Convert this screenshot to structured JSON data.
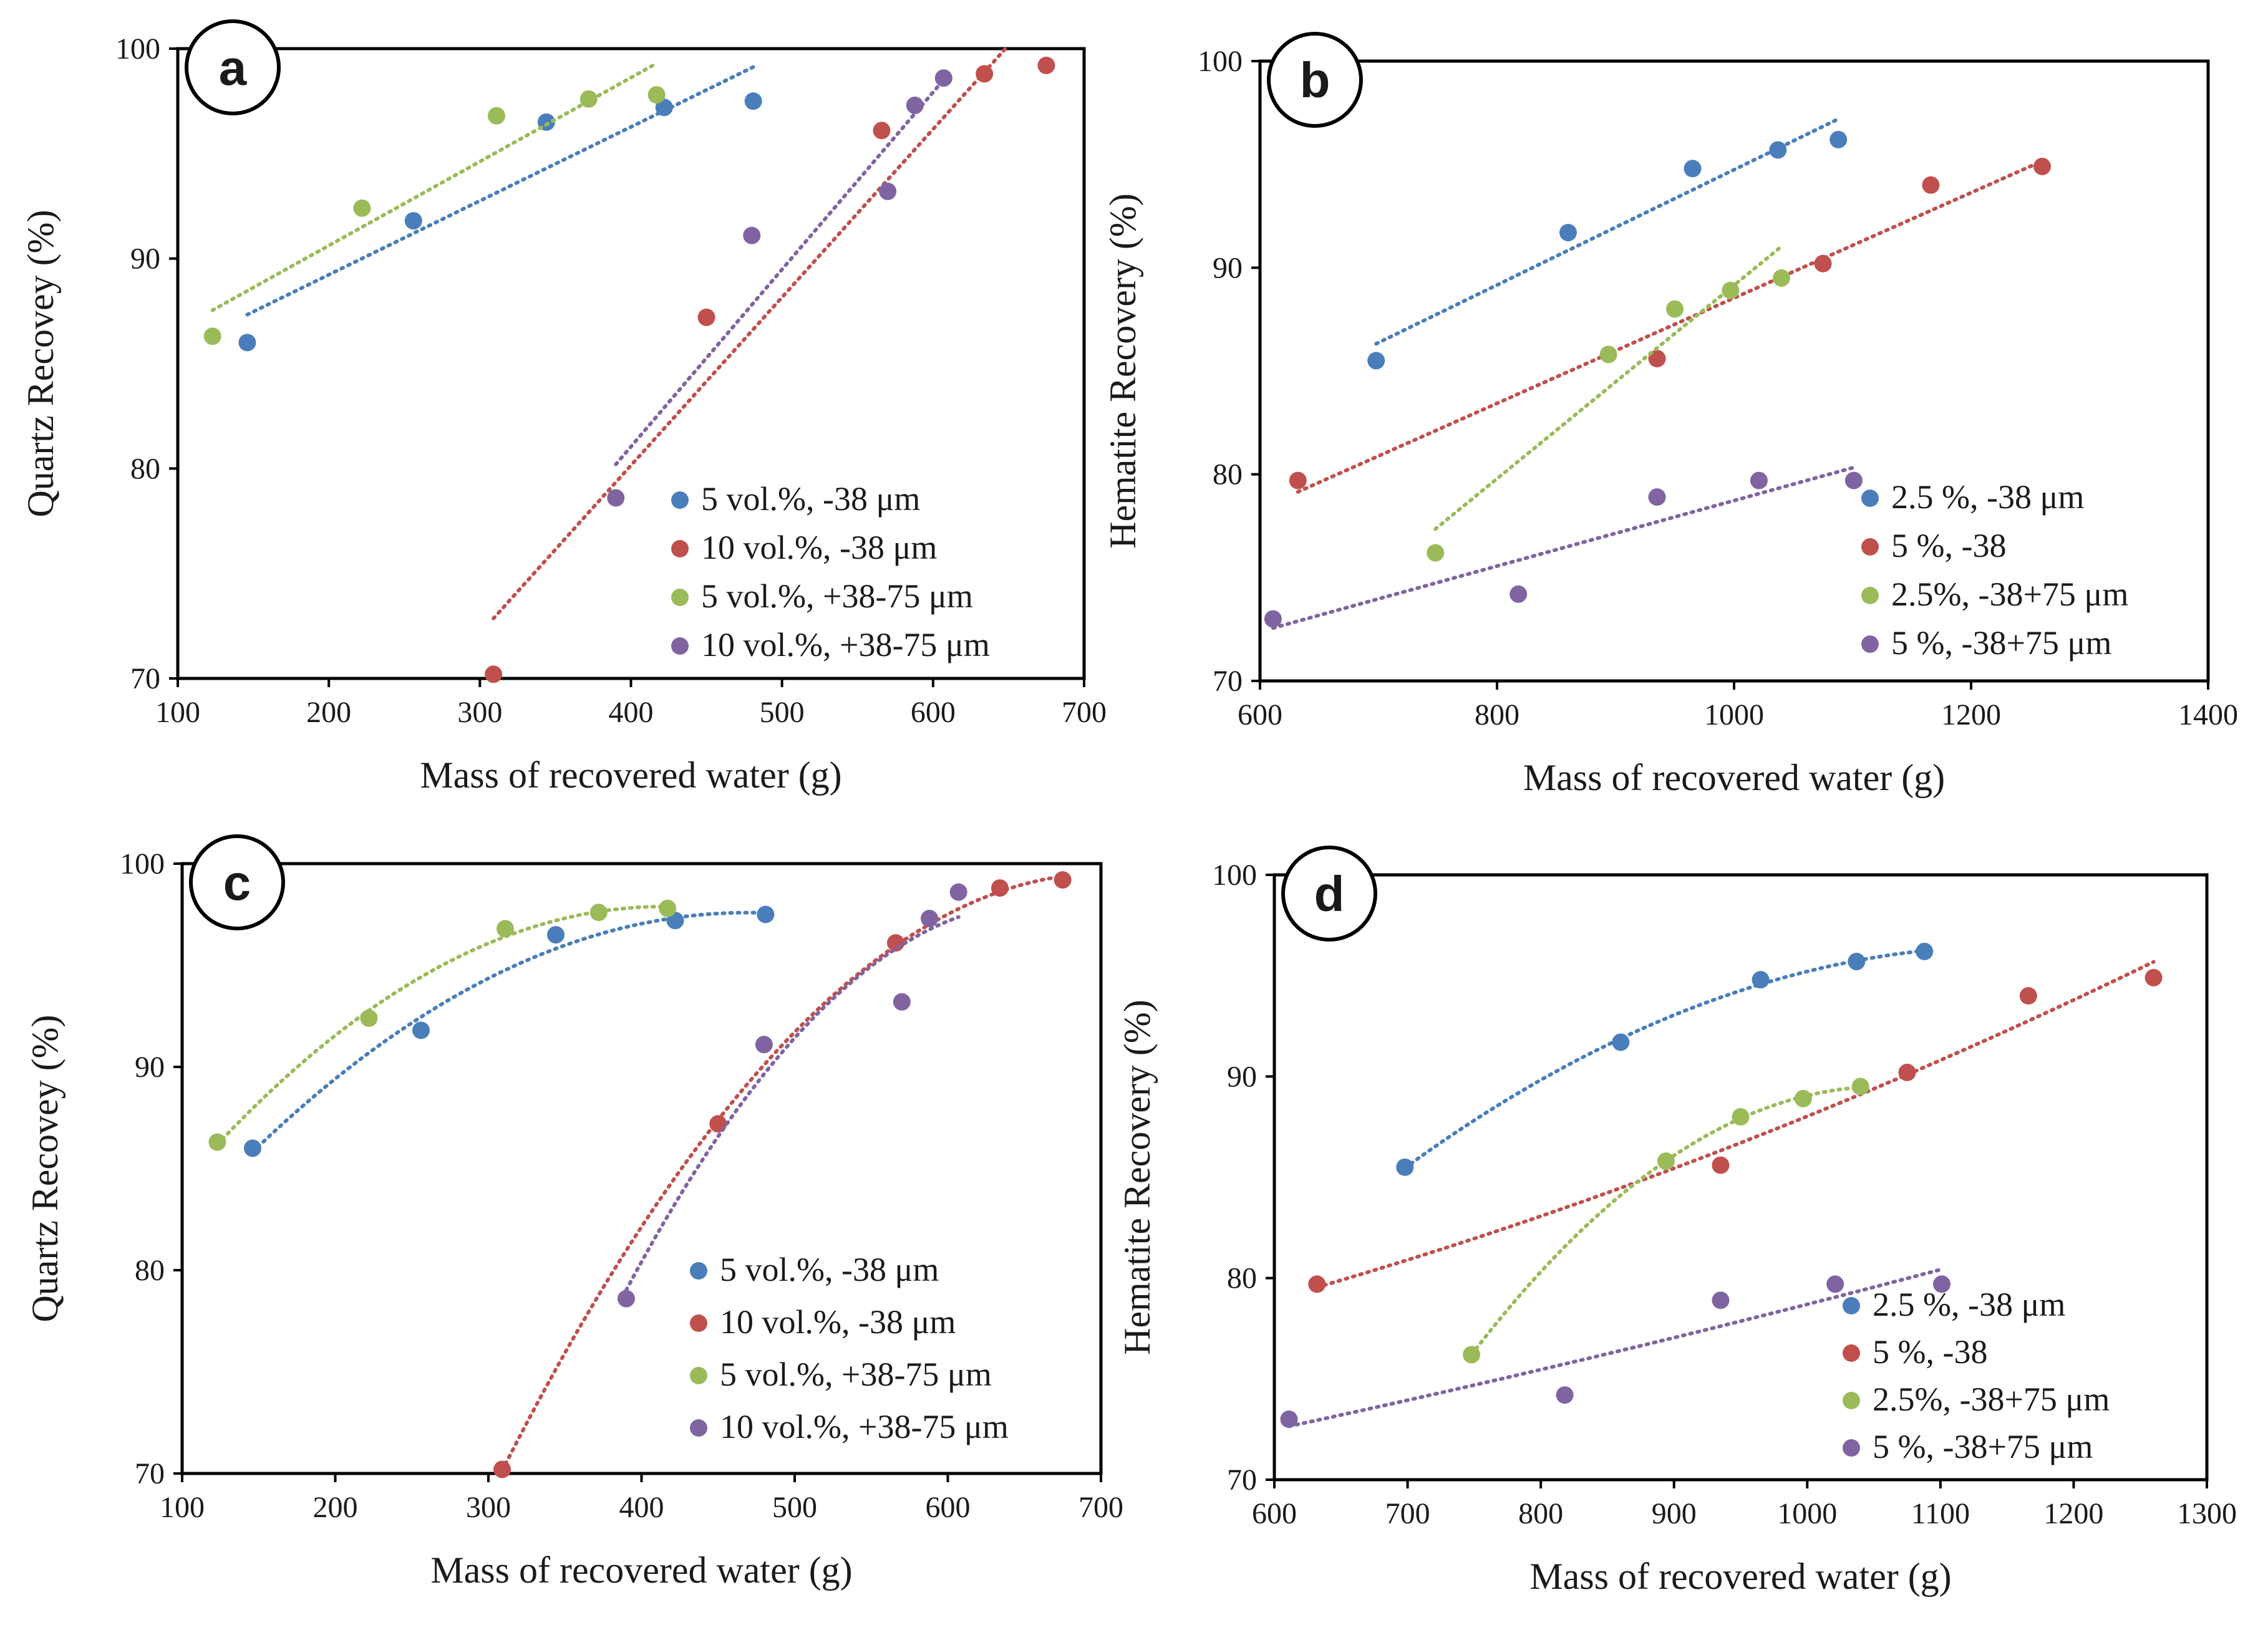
{
  "chart_data": [
    {
      "panel_label": "a",
      "type": "scatter",
      "fit": "linear",
      "xlabel": "Mass of recovered  water (g)",
      "ylabel": "Quartz Recovey  (%)",
      "xlim": [
        100,
        700
      ],
      "ylim": [
        70,
        100
      ],
      "xticks": [
        "100",
        "200",
        "300",
        "400",
        "500",
        "600",
        "700"
      ],
      "yticks": [
        "70",
        "80",
        "90",
        "100"
      ],
      "legend_position": "bottom-right",
      "series": [
        {
          "name": "5 vol.%, -38 μm",
          "color": "#4a7ebb",
          "points": [
            [
              146,
              86.0
            ],
            [
              256,
              91.8
            ],
            [
              344,
              96.5
            ],
            [
              422,
              97.2
            ],
            [
              481,
              97.5
            ]
          ],
          "trend_x": [
            146,
            481
          ]
        },
        {
          "name": "10 vol.%, -38 μm",
          "color": "#c0504d",
          "points": [
            [
              309,
              70.2
            ],
            [
              450,
              87.2
            ],
            [
              566,
              96.1
            ],
            [
              634,
              98.8
            ],
            [
              675,
              99.2
            ]
          ],
          "trend_x": [
            309,
            650
          ]
        },
        {
          "name": "5 vol.%, +38-75 μm",
          "color": "#9bbb59",
          "points": [
            [
              123,
              86.3
            ],
            [
              222,
              92.4
            ],
            [
              311,
              96.8
            ],
            [
              372,
              97.6
            ],
            [
              417,
              97.8
            ]
          ],
          "trend_x": [
            123,
            417
          ]
        },
        {
          "name": "10 vol.%, +38-75 μm",
          "color": "#8064a2",
          "points": [
            [
              390,
              78.6
            ],
            [
              480,
              91.1
            ],
            [
              570,
              93.2
            ],
            [
              588,
              97.3
            ],
            [
              607,
              98.6
            ]
          ],
          "trend_x": [
            390,
            607
          ]
        }
      ]
    },
    {
      "panel_label": "b",
      "type": "scatter",
      "fit": "linear",
      "xlabel": "Mass of recovered  water (g)",
      "ylabel": "Hematite Recovery (%)",
      "xlim": [
        600,
        1400
      ],
      "ylim": [
        70,
        100
      ],
      "xticks": [
        "600",
        "800",
        "1000",
        "1200",
        "1400"
      ],
      "yticks": [
        "70",
        "80",
        "90",
        "100"
      ],
      "legend_position": "bottom-right",
      "series": [
        {
          "name": "2.5 %, -38 μm",
          "color": "#4a7ebb",
          "points": [
            [
              698,
              85.5
            ],
            [
              860,
              91.7
            ],
            [
              965,
              94.8
            ],
            [
              1037,
              95.7
            ],
            [
              1088,
              96.2
            ]
          ],
          "trend_x": [
            698,
            1088
          ]
        },
        {
          "name": "5 %, -38",
          "color": "#c0504d",
          "points": [
            [
              632,
              79.7
            ],
            [
              935,
              85.6
            ],
            [
              1075,
              90.2
            ],
            [
              1166,
              94.0
            ],
            [
              1260,
              94.9
            ]
          ],
          "trend_x": [
            632,
            1260
          ]
        },
        {
          "name": "2.5%, -38+75 μm",
          "color": "#9bbb59",
          "points": [
            [
              748,
              76.2
            ],
            [
              894,
              85.8
            ],
            [
              950,
              88.0
            ],
            [
              997,
              88.9
            ],
            [
              1040,
              89.5
            ]
          ],
          "trend_x": [
            748,
            1040
          ]
        },
        {
          "name": "5 %, -38+75 μm",
          "color": "#8064a2",
          "points": [
            [
              611,
              73.0
            ],
            [
              818,
              74.2
            ],
            [
              935,
              78.9
            ],
            [
              1021,
              79.7
            ],
            [
              1101,
              79.7
            ]
          ],
          "trend_x": [
            611,
            1101
          ]
        }
      ]
    },
    {
      "panel_label": "c",
      "type": "scatter",
      "fit": "polynomial",
      "xlabel": "Mass of recovered  water (g)",
      "ylabel": "Quartz Recovey  (%)",
      "xlim": [
        100,
        700
      ],
      "ylim": [
        70,
        100
      ],
      "xticks": [
        "100",
        "200",
        "300",
        "400",
        "500",
        "600",
        "700"
      ],
      "yticks": [
        "70",
        "80",
        "90",
        "100"
      ],
      "legend_position": "bottom-right",
      "series": [
        {
          "name": "5 vol.%, -38 μm",
          "color": "#4a7ebb",
          "points": [
            [
              146,
              86.0
            ],
            [
              256,
              91.8
            ],
            [
              344,
              96.5
            ],
            [
              422,
              97.2
            ],
            [
              481,
              97.5
            ]
          ],
          "trend_x": [
            146,
            481
          ]
        },
        {
          "name": "10 vol.%, -38 μm",
          "color": "#c0504d",
          "points": [
            [
              309,
              70.2
            ],
            [
              450,
              87.2
            ],
            [
              566,
              96.1
            ],
            [
              634,
              98.8
            ],
            [
              675,
              99.2
            ]
          ],
          "trend_x": [
            309,
            675
          ]
        },
        {
          "name": "5 vol.%, +38-75 μm",
          "color": "#9bbb59",
          "points": [
            [
              123,
              86.3
            ],
            [
              222,
              92.4
            ],
            [
              311,
              96.8
            ],
            [
              372,
              97.6
            ],
            [
              417,
              97.8
            ]
          ],
          "trend_x": [
            123,
            417
          ]
        },
        {
          "name": "10 vol.%, +38-75 μm",
          "color": "#8064a2",
          "points": [
            [
              390,
              78.6
            ],
            [
              480,
              91.1
            ],
            [
              570,
              93.2
            ],
            [
              588,
              97.3
            ],
            [
              607,
              98.6
            ]
          ],
          "trend_x": [
            390,
            607
          ]
        }
      ]
    },
    {
      "panel_label": "d",
      "type": "scatter",
      "fit": "polynomial",
      "xlabel": "Mass of recovered  water (g)",
      "ylabel": "Hematite Recovery (%)",
      "xlim": [
        600,
        1300
      ],
      "ylim": [
        70,
        100
      ],
      "xticks": [
        "600",
        "700",
        "800",
        "900",
        "1000",
        "1100",
        "1200",
        "1300"
      ],
      "yticks": [
        "70",
        "80",
        "90",
        "100"
      ],
      "legend_position": "bottom-right",
      "series": [
        {
          "name": "2.5 %, -38 μm",
          "color": "#4a7ebb",
          "points": [
            [
              698,
              85.5
            ],
            [
              860,
              91.7
            ],
            [
              965,
              94.8
            ],
            [
              1037,
              95.7
            ],
            [
              1088,
              96.2
            ]
          ],
          "trend_x": [
            698,
            1088
          ]
        },
        {
          "name": "5 %, -38",
          "color": "#c0504d",
          "points": [
            [
              632,
              79.7
            ],
            [
              935,
              85.6
            ],
            [
              1075,
              90.2
            ],
            [
              1166,
              94.0
            ],
            [
              1260,
              94.9
            ]
          ],
          "trend_x": [
            632,
            1260
          ]
        },
        {
          "name": "2.5%, -38+75 μm",
          "color": "#9bbb59",
          "points": [
            [
              748,
              76.2
            ],
            [
              894,
              85.8
            ],
            [
              950,
              88.0
            ],
            [
              997,
              88.9
            ],
            [
              1040,
              89.5
            ]
          ],
          "trend_x": [
            748,
            1040
          ]
        },
        {
          "name": "5 %, -38+75 μm",
          "color": "#8064a2",
          "points": [
            [
              611,
              73.0
            ],
            [
              818,
              74.2
            ],
            [
              935,
              78.9
            ],
            [
              1021,
              79.7
            ],
            [
              1101,
              79.7
            ]
          ],
          "trend_x": [
            611,
            1101
          ]
        }
      ]
    }
  ]
}
